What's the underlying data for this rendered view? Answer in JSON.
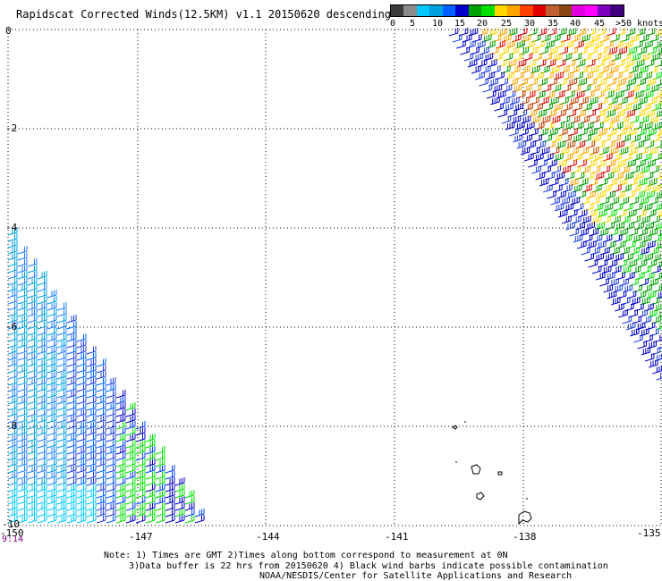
{
  "title": "Rapidscat Corrected Winds(12.5KM) v1.1 20150620 descending",
  "scale": {
    "colors": [
      "#3c3c3c",
      "#8c8c8c",
      "#00c8ff",
      "#00a0e0",
      "#0060ff",
      "#0000c8",
      "#00a000",
      "#00e000",
      "#ffd700",
      "#ffa500",
      "#ff4000",
      "#e00000",
      "#c06030",
      "#8b4513",
      "#e000e0",
      "#ff00ff",
      "#8000c0",
      "#400080"
    ],
    "labels": [
      "0",
      "5",
      "10",
      "15",
      "20",
      "25",
      "30",
      "35",
      "40",
      "45",
      ">50 knots"
    ]
  },
  "y_axis": {
    "labels": [
      "0",
      "-2",
      "-4",
      "-6",
      "-8",
      "-10"
    ]
  },
  "x_axis": {
    "labels": [
      "-150",
      "-147",
      "-144",
      "-141",
      "-138",
      "-135"
    ]
  },
  "time_label": "9:14",
  "notes": [
    "Note: 1) Times are GMT 2)Times along bottom correspond to measurement at 0N",
    "3)Data buffer is 22 hrs from 20150620 4) Black wind barbs indicate possible contamination",
    "NOAA/NESDIS/Center for Satellite Applications and Research"
  ]
}
